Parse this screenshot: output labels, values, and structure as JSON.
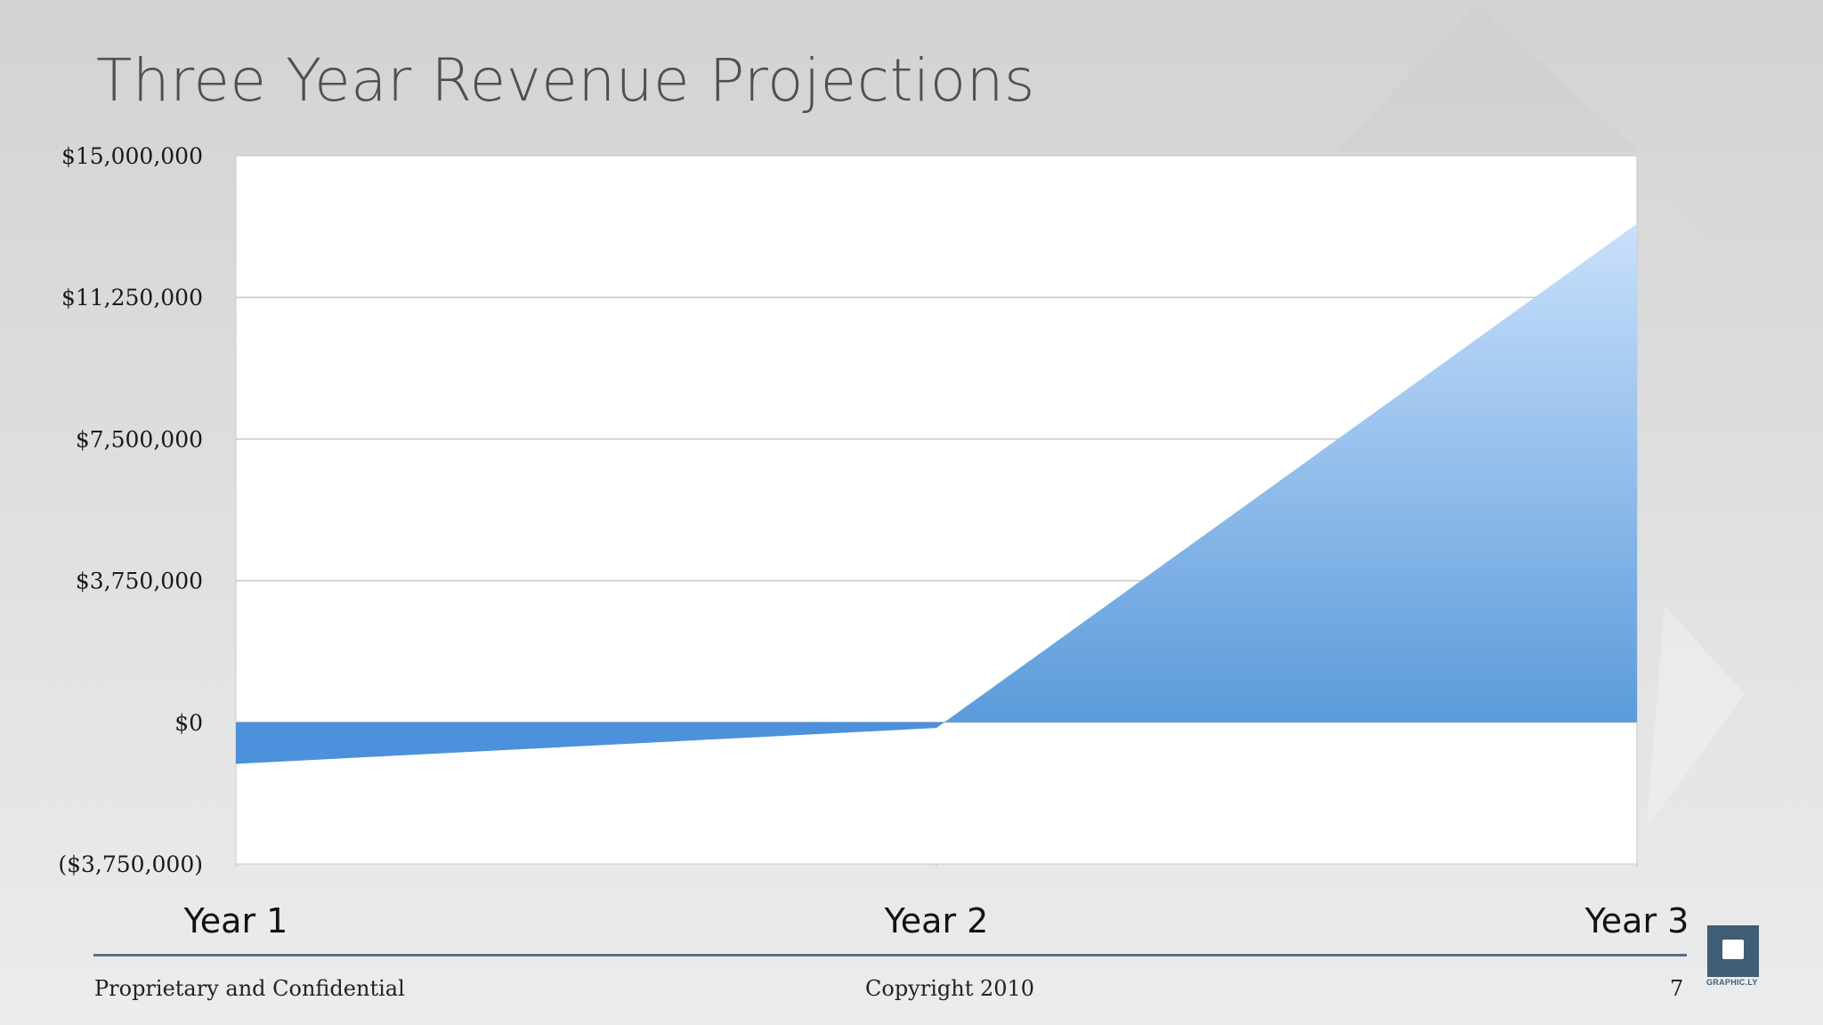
{
  "slide": {
    "title": "Three Year Revenue Projections",
    "footer_left": "Proprietary and Confidential",
    "footer_center": "Copyright 2010",
    "page_number": "7",
    "logo_text": "GRAPHIC.LY",
    "logo_icon": "speech-bubble-icon"
  },
  "chart_data": {
    "type": "area",
    "title": "Three Year Revenue Projections",
    "categories": [
      "Year 1",
      "Year 2",
      "Year 3"
    ],
    "values": [
      -1100000,
      -150000,
      13200000
    ],
    "ylim": [
      -3750000,
      15000000
    ],
    "yticks": [
      15000000,
      11250000,
      7500000,
      3750000,
      0,
      -3750000
    ],
    "ytick_labels": [
      "$15,000,000",
      "$11,250,000",
      "$7,500,000",
      "$3,750,000",
      "$0",
      "($3,750,000)"
    ],
    "grid": true,
    "legend": "none",
    "colors": {
      "fill_top": "#c9e0fb",
      "fill_bottom": "#5b9bdb",
      "negative_fill": "#4d90db"
    }
  }
}
